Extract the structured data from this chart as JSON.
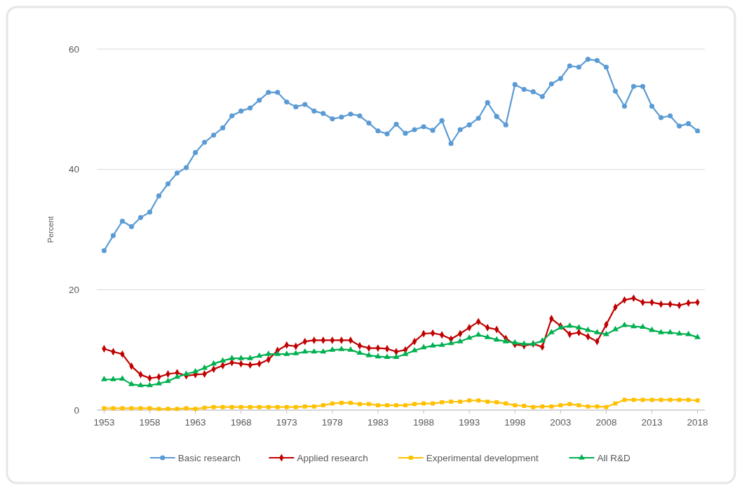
{
  "chart_data": {
    "type": "line",
    "ylabel": "Percent",
    "x": [
      1953,
      1954,
      1955,
      1956,
      1957,
      1958,
      1959,
      1960,
      1961,
      1962,
      1963,
      1964,
      1965,
      1966,
      1967,
      1968,
      1969,
      1970,
      1971,
      1972,
      1973,
      1974,
      1975,
      1976,
      1977,
      1978,
      1979,
      1980,
      1981,
      1982,
      1983,
      1984,
      1985,
      1986,
      1987,
      1988,
      1989,
      1990,
      1991,
      1992,
      1993,
      1994,
      1995,
      1996,
      1997,
      1998,
      1999,
      2000,
      2001,
      2002,
      2003,
      2004,
      2005,
      2006,
      2007,
      2008,
      2009,
      2010,
      2011,
      2012,
      2013,
      2014,
      2015,
      2016,
      2017,
      2018
    ],
    "xlim": [
      1952.2,
      2018.8
    ],
    "xticks": [
      1953,
      1958,
      1963,
      1968,
      1973,
      1978,
      1983,
      1988,
      1993,
      1998,
      2003,
      2008,
      2013,
      2018
    ],
    "ylim": [
      0,
      60
    ],
    "yticks": [
      0,
      20,
      40,
      60
    ],
    "grid": "y",
    "legend": "bottom",
    "series": [
      {
        "name": "Basic research",
        "color": "#5b9bd5",
        "marker": "circle",
        "values": [
          26.5,
          29.0,
          31.4,
          30.5,
          32.0,
          32.9,
          35.6,
          37.6,
          39.4,
          40.3,
          42.8,
          44.5,
          45.7,
          46.9,
          48.9,
          49.7,
          50.2,
          51.5,
          52.8,
          52.8,
          51.2,
          50.4,
          50.8,
          49.7,
          49.3,
          48.4,
          48.7,
          49.2,
          48.9,
          47.7,
          46.4,
          45.9,
          47.5,
          46.0,
          46.6,
          47.1,
          46.5,
          48.1,
          44.3,
          46.6,
          47.4,
          48.5,
          51.1,
          48.8,
          47.4,
          54.1,
          53.3,
          52.9,
          52.1,
          54.2,
          55.1,
          57.2,
          57.0,
          58.3,
          58.1,
          57.0,
          53.0,
          50.5,
          53.8,
          53.8,
          50.5,
          48.6,
          48.9,
          47.2,
          47.6,
          46.4
        ]
      },
      {
        "name": "Applied research",
        "color": "#c00000",
        "marker": "diamond",
        "values": [
          10.2,
          9.7,
          9.3,
          7.3,
          5.9,
          5.3,
          5.5,
          6.0,
          6.2,
          5.7,
          5.9,
          6.0,
          6.8,
          7.4,
          7.9,
          7.7,
          7.5,
          7.7,
          8.4,
          9.9,
          10.8,
          10.6,
          11.4,
          11.6,
          11.6,
          11.6,
          11.6,
          11.6,
          10.7,
          10.3,
          10.3,
          10.2,
          9.7,
          10.0,
          11.4,
          12.7,
          12.8,
          12.5,
          11.8,
          12.7,
          13.7,
          14.7,
          13.7,
          13.4,
          11.9,
          10.9,
          10.7,
          11.0,
          10.5,
          15.2,
          14.0,
          12.6,
          12.9,
          12.2,
          11.4,
          14.2,
          17.1,
          18.3,
          18.6,
          17.9,
          17.9,
          17.6,
          17.6,
          17.4,
          17.8,
          17.9
        ]
      },
      {
        "name": "Experimental development",
        "color": "#ffc000",
        "marker": "square",
        "values": [
          0.3,
          0.3,
          0.3,
          0.3,
          0.3,
          0.3,
          0.2,
          0.2,
          0.2,
          0.3,
          0.2,
          0.4,
          0.5,
          0.5,
          0.5,
          0.5,
          0.5,
          0.5,
          0.5,
          0.5,
          0.5,
          0.5,
          0.6,
          0.6,
          0.8,
          1.1,
          1.2,
          1.2,
          1.0,
          1.0,
          0.8,
          0.8,
          0.8,
          0.8,
          1.0,
          1.1,
          1.1,
          1.3,
          1.4,
          1.4,
          1.6,
          1.6,
          1.4,
          1.3,
          1.1,
          0.8,
          0.7,
          0.5,
          0.6,
          0.6,
          0.8,
          1.0,
          0.8,
          0.6,
          0.6,
          0.5,
          1.1,
          1.7,
          1.7,
          1.7,
          1.7,
          1.7,
          1.7,
          1.7,
          1.7,
          1.6
        ]
      },
      {
        "name": "All R&D",
        "color": "#00b050",
        "marker": "triangle",
        "values": [
          5.1,
          5.1,
          5.2,
          4.3,
          4.1,
          4.1,
          4.4,
          4.8,
          5.5,
          6.0,
          6.4,
          7.0,
          7.7,
          8.2,
          8.6,
          8.6,
          8.6,
          9.0,
          9.3,
          9.3,
          9.3,
          9.4,
          9.7,
          9.7,
          9.7,
          10.0,
          10.1,
          10.0,
          9.5,
          9.1,
          8.9,
          8.8,
          8.8,
          9.3,
          9.9,
          10.4,
          10.7,
          10.8,
          11.1,
          11.4,
          12.0,
          12.5,
          12.1,
          11.7,
          11.4,
          11.2,
          11.0,
          11.0,
          11.5,
          12.9,
          13.7,
          14.0,
          13.7,
          13.3,
          12.9,
          12.6,
          13.4,
          14.1,
          13.9,
          13.8,
          13.3,
          12.9,
          12.9,
          12.7,
          12.6,
          12.1
        ]
      }
    ]
  }
}
